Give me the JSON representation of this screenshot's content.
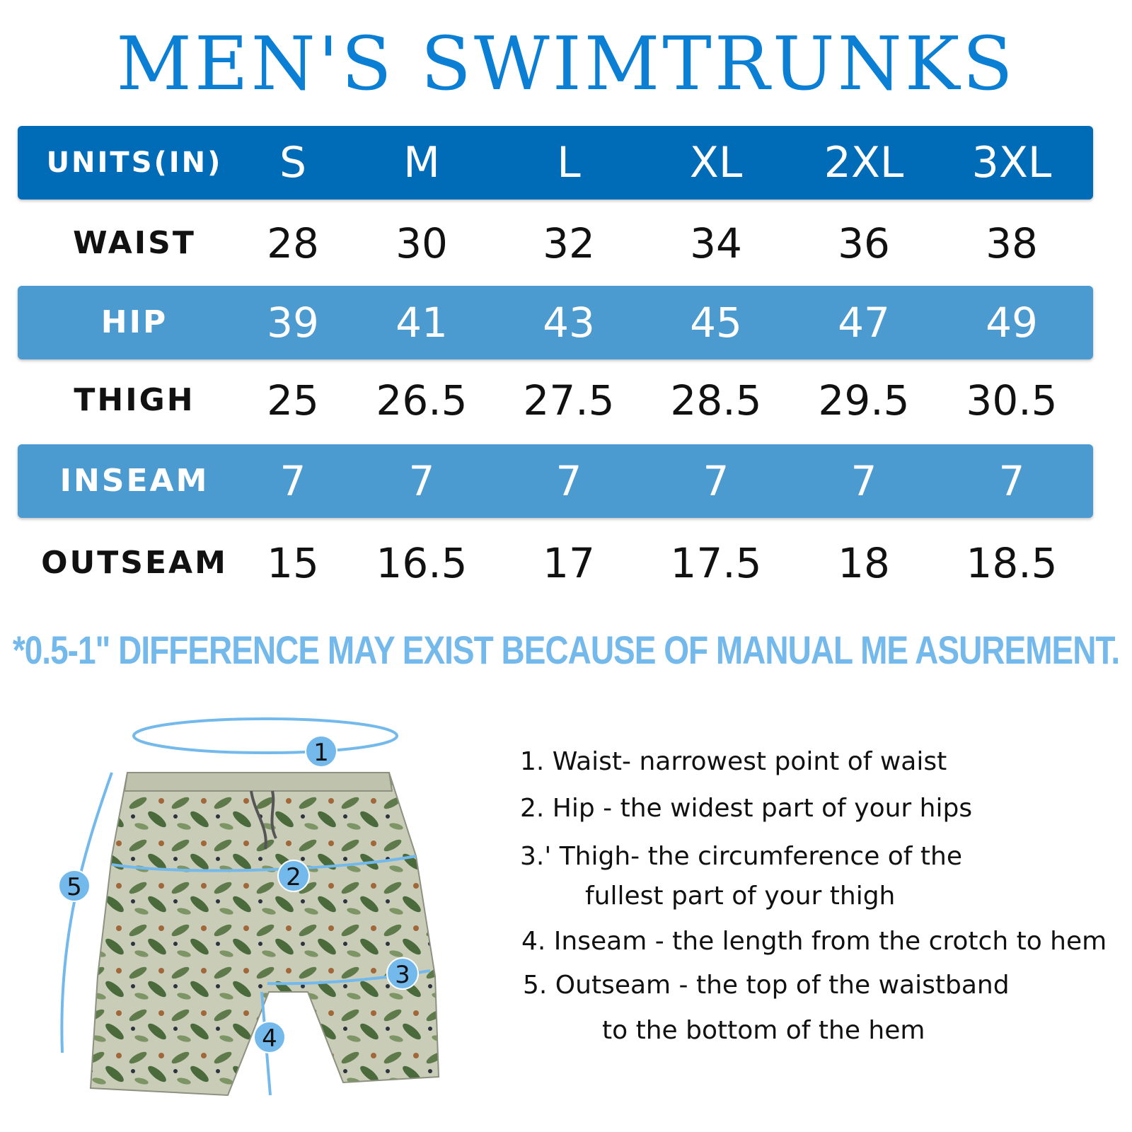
{
  "title": "MEN'S SWIMTRUNKS",
  "table": {
    "header": {
      "label": "UNITS(IN)",
      "sizes": [
        "S",
        "M",
        "L",
        "XL",
        "2XL",
        "3XL"
      ]
    },
    "rows": [
      {
        "label": "WAIST",
        "values": [
          "28",
          "30",
          "32",
          "34",
          "36",
          "38"
        ]
      },
      {
        "label": "HIP",
        "values": [
          "39",
          "41",
          "43",
          "45",
          "47",
          "49"
        ]
      },
      {
        "label": "THIGH",
        "values": [
          "25",
          "26.5",
          "27.5",
          "28.5",
          "29.5",
          "30.5"
        ]
      },
      {
        "label": "INSEAM",
        "values": [
          "7",
          "7",
          "7",
          "7",
          "7",
          "7"
        ]
      },
      {
        "label": "OUTSEAM",
        "values": [
          "15",
          "16.5",
          "17",
          "17.5",
          "18",
          "18.5"
        ]
      }
    ]
  },
  "note": "*0.5-1\" DIFFERENCE MAY EXIST BECAUSE OF MANUAL ME ASUREMENT.",
  "markers": [
    "1",
    "2",
    "3",
    "4",
    "5"
  ],
  "instructions": [
    "1. Waist- narrowest point of waist",
    "2. Hip - the widest part of your hips",
    "3.' Thigh- the circumference of the",
    "fullest part of your thigh",
    "4. Inseam - the length from the crotch to hem",
    "5. Outseam - the top of the waistband",
    "to the bottom of the hem"
  ],
  "colors": {
    "title": "#0a7fd4",
    "header_band": "#006bb6",
    "alt_band": "#4b9ad0",
    "note": "#74b9ec",
    "marker": "#74b9ec"
  }
}
